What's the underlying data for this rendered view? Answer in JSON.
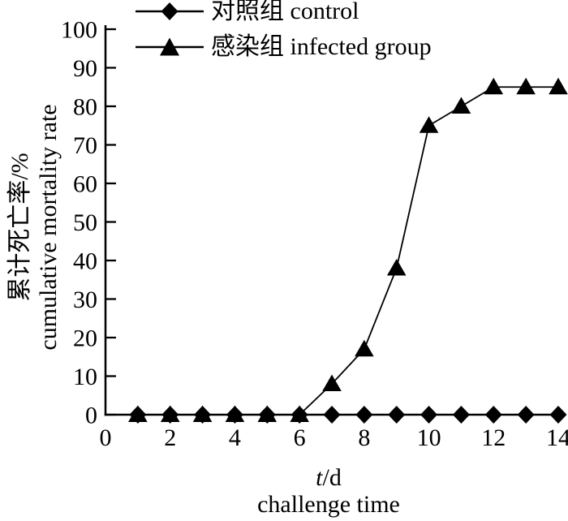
{
  "figure": {
    "background": "#ffffff",
    "ink": "#000000"
  },
  "legend": {
    "items": [
      {
        "label": "对照组 control",
        "marker": "diamond"
      },
      {
        "label": "感染组 infected group",
        "marker": "triangle"
      }
    ]
  },
  "axes": {
    "y": {
      "title_line1": "累计死亡率/%",
      "title_line2": "cumulative mortality rate",
      "ticks": [
        0,
        10,
        20,
        30,
        40,
        50,
        60,
        70,
        80,
        90,
        100
      ]
    },
    "x": {
      "title_symbol": "t",
      "title_unit": "/d",
      "title_line2": "challenge time",
      "tick_labels": [
        0,
        2,
        4,
        6,
        8,
        10,
        12,
        14
      ]
    }
  },
  "chart_data": {
    "type": "line",
    "title": "",
    "x": [
      1,
      2,
      3,
      4,
      5,
      6,
      7,
      8,
      9,
      10,
      11,
      12,
      13,
      14
    ],
    "series": [
      {
        "name": "对照组 control",
        "marker": "diamond",
        "values": [
          0,
          0,
          0,
          0,
          0,
          0,
          0,
          0,
          0,
          0,
          0,
          0,
          0,
          0
        ]
      },
      {
        "name": "感染组 infected group",
        "marker": "triangle",
        "values": [
          0,
          0,
          0,
          0,
          0,
          0,
          8,
          17,
          38,
          75,
          80,
          85,
          85,
          85
        ]
      }
    ],
    "xlabel": "t/d challenge time",
    "ylabel": "累计死亡率/% cumulative mortality rate",
    "xlim": [
      0,
      14
    ],
    "ylim": [
      0,
      100
    ],
    "grid": false,
    "legend_position": "top-left"
  }
}
